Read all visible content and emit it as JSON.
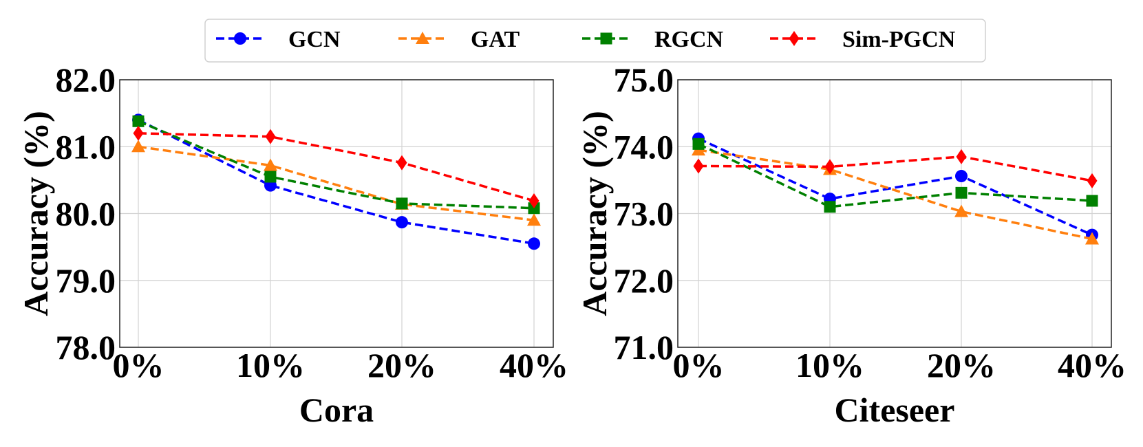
{
  "legend": {
    "entries": [
      {
        "name": "GCN",
        "color": "#0000ff",
        "marker": "circle"
      },
      {
        "name": "GAT",
        "color": "#ff7f0e",
        "marker": "triangle"
      },
      {
        "name": "RGCN",
        "color": "#008000",
        "marker": "square"
      },
      {
        "name": "Sim-PGCN",
        "color": "#ff0000",
        "marker": "diamond"
      }
    ]
  },
  "chart_data": [
    {
      "type": "line",
      "title": "",
      "xlabel": "Cora",
      "ylabel": "Accuracy (%)",
      "categories": [
        "0%",
        "10%",
        "20%",
        "40%"
      ],
      "ylim": [
        78.0,
        82.0
      ],
      "yticks": [
        "78.0",
        "79.0",
        "80.0",
        "81.0",
        "82.0"
      ],
      "grid": true,
      "series": [
        {
          "name": "GCN",
          "values": [
            81.4,
            80.42,
            79.87,
            79.55
          ]
        },
        {
          "name": "GAT",
          "values": [
            81.0,
            80.72,
            80.14,
            79.9
          ]
        },
        {
          "name": "RGCN",
          "values": [
            81.38,
            80.55,
            80.15,
            80.08
          ]
        },
        {
          "name": "Sim-PGCN",
          "values": [
            81.2,
            81.15,
            80.76,
            80.19
          ]
        }
      ]
    },
    {
      "type": "line",
      "title": "",
      "xlabel": "Citeseer",
      "ylabel": "Accuracy (%)",
      "categories": [
        "0%",
        "10%",
        "20%",
        "40%"
      ],
      "ylim": [
        71.0,
        75.0
      ],
      "yticks": [
        "71.0",
        "72.0",
        "73.0",
        "74.0",
        "75.0"
      ],
      "grid": true,
      "series": [
        {
          "name": "GCN",
          "values": [
            74.12,
            73.22,
            73.56,
            72.68
          ]
        },
        {
          "name": "GAT",
          "values": [
            73.95,
            73.66,
            73.03,
            72.62
          ]
        },
        {
          "name": "RGCN",
          "values": [
            74.04,
            73.1,
            73.31,
            73.19
          ]
        },
        {
          "name": "Sim-PGCN",
          "values": [
            73.71,
            73.7,
            73.85,
            73.49
          ]
        }
      ]
    }
  ]
}
